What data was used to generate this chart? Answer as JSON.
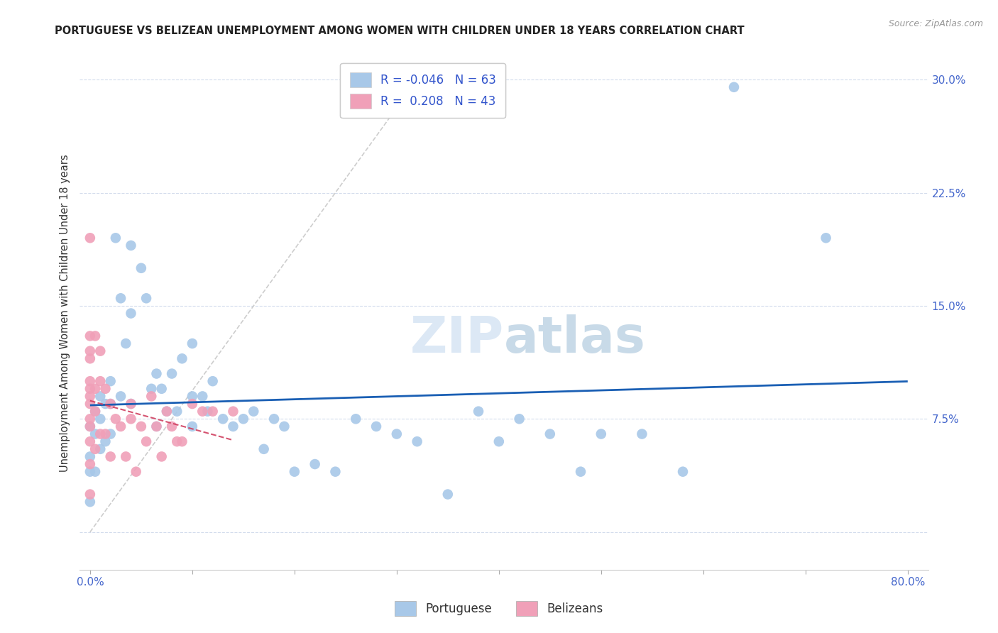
{
  "title": "PORTUGUESE VS BELIZEAN UNEMPLOYMENT AMONG WOMEN WITH CHILDREN UNDER 18 YEARS CORRELATION CHART",
  "source": "Source: ZipAtlas.com",
  "ylabel": "Unemployment Among Women with Children Under 18 years",
  "xlim": [
    -0.01,
    0.82
  ],
  "ylim": [
    -0.025,
    0.315
  ],
  "xticks": [
    0.0,
    0.1,
    0.2,
    0.3,
    0.4,
    0.5,
    0.6,
    0.7,
    0.8
  ],
  "xticklabels": [
    "0.0%",
    "",
    "",
    "",
    "",
    "",
    "",
    "",
    "80.0%"
  ],
  "yticks": [
    0.0,
    0.075,
    0.15,
    0.225,
    0.3
  ],
  "yticklabels": [
    "",
    "7.5%",
    "15.0%",
    "22.5%",
    "30.0%"
  ],
  "legend_r_portuguese": "-0.046",
  "legend_n_portuguese": "63",
  "legend_r_belizean": "0.208",
  "legend_n_belizean": "43",
  "portuguese_color": "#a8c8e8",
  "belizean_color": "#f0a0b8",
  "trend_portuguese_color": "#1a5fb4",
  "trend_belizean_color": "#d04060",
  "diagonal_color": "#c8c8c8",
  "watermark_color": "#dce8f5",
  "background_color": "#ffffff",
  "portuguese_x": [
    0.0,
    0.0,
    0.0,
    0.0,
    0.005,
    0.005,
    0.005,
    0.01,
    0.01,
    0.01,
    0.015,
    0.015,
    0.02,
    0.02,
    0.02,
    0.025,
    0.03,
    0.03,
    0.035,
    0.04,
    0.04,
    0.04,
    0.05,
    0.055,
    0.06,
    0.065,
    0.065,
    0.07,
    0.075,
    0.08,
    0.085,
    0.09,
    0.1,
    0.1,
    0.1,
    0.11,
    0.115,
    0.12,
    0.13,
    0.14,
    0.15,
    0.16,
    0.17,
    0.18,
    0.19,
    0.2,
    0.22,
    0.24,
    0.26,
    0.28,
    0.3,
    0.32,
    0.35,
    0.38,
    0.4,
    0.42,
    0.45,
    0.48,
    0.5,
    0.54,
    0.58,
    0.63,
    0.72
  ],
  "portuguese_y": [
    0.07,
    0.05,
    0.04,
    0.02,
    0.08,
    0.065,
    0.04,
    0.09,
    0.075,
    0.055,
    0.085,
    0.06,
    0.1,
    0.085,
    0.065,
    0.195,
    0.155,
    0.09,
    0.125,
    0.19,
    0.145,
    0.085,
    0.175,
    0.155,
    0.095,
    0.105,
    0.07,
    0.095,
    0.08,
    0.105,
    0.08,
    0.115,
    0.125,
    0.09,
    0.07,
    0.09,
    0.08,
    0.1,
    0.075,
    0.07,
    0.075,
    0.08,
    0.055,
    0.075,
    0.07,
    0.04,
    0.045,
    0.04,
    0.075,
    0.07,
    0.065,
    0.06,
    0.025,
    0.08,
    0.06,
    0.075,
    0.065,
    0.04,
    0.065,
    0.065,
    0.04,
    0.295,
    0.195
  ],
  "belizean_x": [
    0.0,
    0.0,
    0.0,
    0.0,
    0.0,
    0.0,
    0.0,
    0.0,
    0.0,
    0.0,
    0.0,
    0.0,
    0.0,
    0.005,
    0.005,
    0.005,
    0.005,
    0.01,
    0.01,
    0.01,
    0.015,
    0.015,
    0.02,
    0.02,
    0.025,
    0.03,
    0.035,
    0.04,
    0.04,
    0.045,
    0.05,
    0.055,
    0.06,
    0.065,
    0.07,
    0.075,
    0.08,
    0.085,
    0.09,
    0.1,
    0.11,
    0.12,
    0.14
  ],
  "belizean_y": [
    0.195,
    0.13,
    0.12,
    0.115,
    0.1,
    0.095,
    0.09,
    0.085,
    0.075,
    0.07,
    0.06,
    0.045,
    0.025,
    0.13,
    0.095,
    0.08,
    0.055,
    0.12,
    0.1,
    0.065,
    0.095,
    0.065,
    0.085,
    0.05,
    0.075,
    0.07,
    0.05,
    0.085,
    0.075,
    0.04,
    0.07,
    0.06,
    0.09,
    0.07,
    0.05,
    0.08,
    0.07,
    0.06,
    0.06,
    0.085,
    0.08,
    0.08,
    0.08
  ]
}
